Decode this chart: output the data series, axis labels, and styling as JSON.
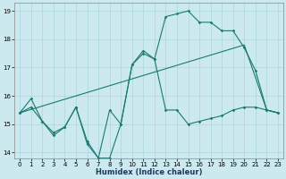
{
  "xlabel": "Humidex (Indice chaleur)",
  "bg_color": "#cce9f0",
  "grid_color": "#aad4dc",
  "line_color": "#1a7a6e",
  "xlim": [
    -0.5,
    23.5
  ],
  "ylim": [
    13.8,
    19.3
  ],
  "yticks": [
    14,
    15,
    16,
    17,
    18,
    19
  ],
  "xticks": [
    0,
    1,
    2,
    3,
    4,
    5,
    6,
    7,
    8,
    9,
    10,
    11,
    12,
    13,
    14,
    15,
    16,
    17,
    18,
    19,
    20,
    21,
    22,
    23
  ],
  "line1_x": [
    0,
    1,
    2,
    3,
    4,
    5,
    6,
    7,
    8,
    9,
    10,
    11,
    12,
    13,
    14,
    15,
    16,
    17,
    18,
    19,
    20,
    21,
    22,
    23
  ],
  "line1_y": [
    15.4,
    15.9,
    15.1,
    14.7,
    14.9,
    15.6,
    14.3,
    13.8,
    13.8,
    15.0,
    17.1,
    17.5,
    17.3,
    15.5,
    15.5,
    15.0,
    15.1,
    15.2,
    15.3,
    15.5,
    15.6,
    15.6,
    15.5,
    15.4
  ],
  "line2_x": [
    0,
    20,
    22,
    23
  ],
  "line2_y": [
    15.4,
    17.8,
    15.5,
    15.4
  ],
  "line3_x": [
    0,
    1,
    2,
    3,
    4,
    5,
    6,
    7,
    8,
    9,
    10,
    11,
    12,
    13,
    14,
    15,
    16,
    17,
    18,
    19,
    20,
    21,
    22,
    23
  ],
  "line3_y": [
    15.4,
    15.6,
    15.1,
    14.6,
    14.9,
    15.6,
    14.4,
    13.8,
    15.5,
    15.0,
    17.1,
    17.6,
    17.3,
    18.8,
    18.9,
    19.0,
    18.6,
    18.6,
    18.3,
    18.3,
    17.7,
    16.9,
    15.5,
    15.4
  ]
}
